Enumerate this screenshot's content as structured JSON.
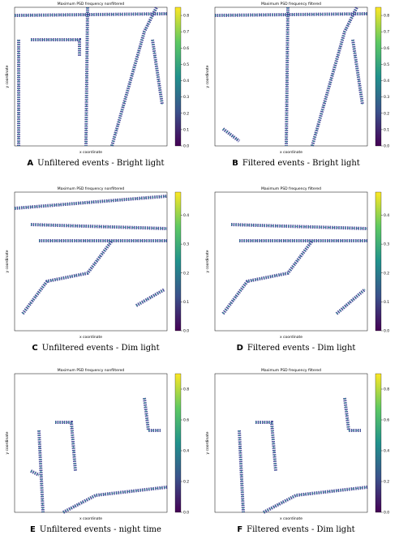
{
  "figure": {
    "panels": [
      {
        "title": "Maximum PSD frequency nonfiltered",
        "y_label": "y coordinate",
        "x_label": "x coordinate",
        "letter": "A",
        "caption": "Unfiltered events - Bright light",
        "colorbar": {
          "lim": [
            0,
            0.85
          ],
          "ticks": [
            {
              "value": 0,
              "label": "0.0"
            },
            {
              "value": 0.1,
              "label": "0.1"
            },
            {
              "value": 0.2,
              "label": "0.2"
            },
            {
              "value": 0.3,
              "label": "0.3"
            },
            {
              "value": 0.4,
              "label": "0.4"
            },
            {
              "value": 0.5,
              "label": "0.5"
            },
            {
              "value": 0.6,
              "label": "0.6"
            },
            {
              "value": 0.7,
              "label": "0.7"
            },
            {
              "value": 0.8,
              "label": "0.8"
            }
          ]
        }
      },
      {
        "title": "Maximum PSD frequency filtered",
        "y_label": "y coordinate",
        "x_label": "x coordinate",
        "letter": "B",
        "caption": "Filtered events - Bright light",
        "colorbar": {
          "lim": [
            0,
            0.85
          ],
          "ticks": [
            {
              "value": 0,
              "label": "0.0"
            },
            {
              "value": 0.1,
              "label": "0.1"
            },
            {
              "value": 0.2,
              "label": "0.2"
            },
            {
              "value": 0.3,
              "label": "0.3"
            },
            {
              "value": 0.4,
              "label": "0.4"
            },
            {
              "value": 0.5,
              "label": "0.5"
            },
            {
              "value": 0.6,
              "label": "0.6"
            },
            {
              "value": 0.7,
              "label": "0.7"
            },
            {
              "value": 0.8,
              "label": "0.8"
            }
          ]
        }
      },
      {
        "title": "Maximum PSD frequency nonfiltered",
        "y_label": "y coordinate",
        "x_label": "x coordinate",
        "letter": "C",
        "caption": "Unfiltered events - Dim light",
        "colorbar": {
          "lim": [
            0,
            0.48
          ],
          "ticks": [
            {
              "value": 0,
              "label": "0.0"
            },
            {
              "value": 0.1,
              "label": "0.1"
            },
            {
              "value": 0.2,
              "label": "0.2"
            },
            {
              "value": 0.3,
              "label": "0.3"
            },
            {
              "value": 0.4,
              "label": "0.4"
            }
          ]
        }
      },
      {
        "title": "Maximum PSD frequency filtered",
        "y_label": "y coordinate",
        "x_label": "x coordinate",
        "letter": "D",
        "caption": "Filtered events - Dim light",
        "colorbar": {
          "lim": [
            0,
            0.48
          ],
          "ticks": [
            {
              "value": 0,
              "label": "0.0"
            },
            {
              "value": 0.1,
              "label": "0.1"
            },
            {
              "value": 0.2,
              "label": "0.2"
            },
            {
              "value": 0.3,
              "label": "0.3"
            },
            {
              "value": 0.4,
              "label": "0.4"
            }
          ]
        }
      },
      {
        "title": "Maximum PSD frequency nonfiltered",
        "y_label": "y coordinate",
        "x_label": "x coordinate",
        "letter": "E",
        "caption": "Unfiltered events - night time",
        "colorbar": {
          "lim": [
            0,
            0.9
          ],
          "ticks": [
            {
              "value": 0,
              "label": "0.0"
            },
            {
              "value": 0.2,
              "label": "0.2"
            },
            {
              "value": 0.4,
              "label": "0.4"
            },
            {
              "value": 0.6,
              "label": "0.6"
            },
            {
              "value": 0.8,
              "label": "0.8"
            }
          ]
        }
      },
      {
        "title": "Maximum PSD frequency filtered",
        "y_label": "y coordinate",
        "x_label": "x coordinate",
        "letter": "F",
        "caption": "Filtered events - Dim light",
        "colorbar": {
          "lim": [
            0,
            0.9
          ],
          "ticks": [
            {
              "value": 0,
              "label": "0.0"
            },
            {
              "value": 0.2,
              "label": "0.2"
            },
            {
              "value": 0.4,
              "label": "0.4"
            },
            {
              "value": 0.6,
              "label": "0.6"
            },
            {
              "value": 0.8,
              "label": "0.8"
            }
          ]
        }
      }
    ]
  }
}
